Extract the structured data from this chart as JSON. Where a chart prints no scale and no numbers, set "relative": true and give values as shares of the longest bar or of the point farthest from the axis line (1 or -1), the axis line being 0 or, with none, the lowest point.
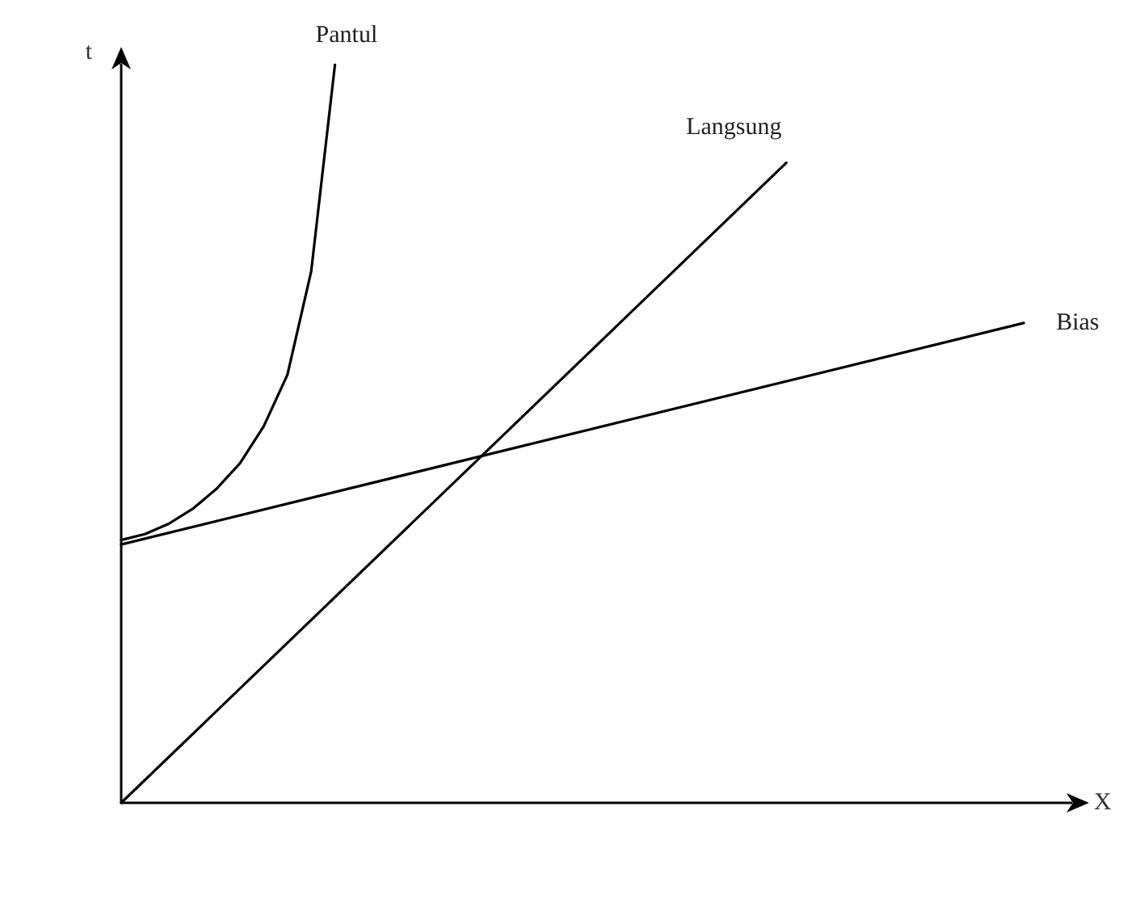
{
  "chart_data": {
    "type": "line",
    "relative": true,
    "xlabel": "X",
    "ylabel": "t",
    "grid": false,
    "legend": false,
    "marker": "none",
    "line_style": "solid",
    "categories": [
      null,
      null,
      null,
      null,
      null,
      null,
      null,
      null,
      null,
      null,
      null,
      null,
      null,
      null,
      null,
      null,
      null,
      null,
      null,
      null,
      null,
      null,
      null,
      null,
      null,
      null,
      null,
      null,
      null,
      null,
      null,
      null,
      null,
      null,
      null,
      null,
      null,
      null,
      null,
      null,
      null
    ],
    "series": [
      {
        "name": "Pantul",
        "color": "#000000",
        "values": [
          0.356,
          0.364,
          0.378,
          0.398,
          0.425,
          0.46,
          0.51,
          0.58,
          0.72,
          1.0,
          null,
          null,
          null,
          null,
          null,
          null,
          null,
          null,
          null,
          null,
          null,
          null,
          null,
          null,
          null,
          null,
          null,
          null,
          null,
          null,
          null,
          null,
          null,
          null,
          null,
          null,
          null,
          null,
          null,
          null,
          null
        ]
      },
      {
        "name": "Langsung",
        "color": "#000000",
        "values": [
          0,
          null,
          null,
          null,
          null,
          null,
          null,
          null,
          null,
          null,
          null,
          null,
          null,
          null,
          null,
          null,
          null,
          null,
          null,
          null,
          null,
          null,
          null,
          null,
          null,
          null,
          null,
          null,
          0.867,
          null,
          null,
          null,
          null,
          null,
          null,
          null,
          null,
          null,
          null,
          null,
          null
        ]
      },
      {
        "name": "Bias",
        "color": "#000000",
        "values": [
          0.35,
          null,
          null,
          null,
          null,
          null,
          null,
          null,
          null,
          null,
          null,
          null,
          null,
          null,
          null,
          null,
          null,
          null,
          null,
          null,
          null,
          null,
          null,
          null,
          null,
          null,
          null,
          null,
          null,
          null,
          null,
          null,
          null,
          null,
          null,
          null,
          null,
          null,
          0.65,
          null,
          null
        ]
      }
    ]
  }
}
